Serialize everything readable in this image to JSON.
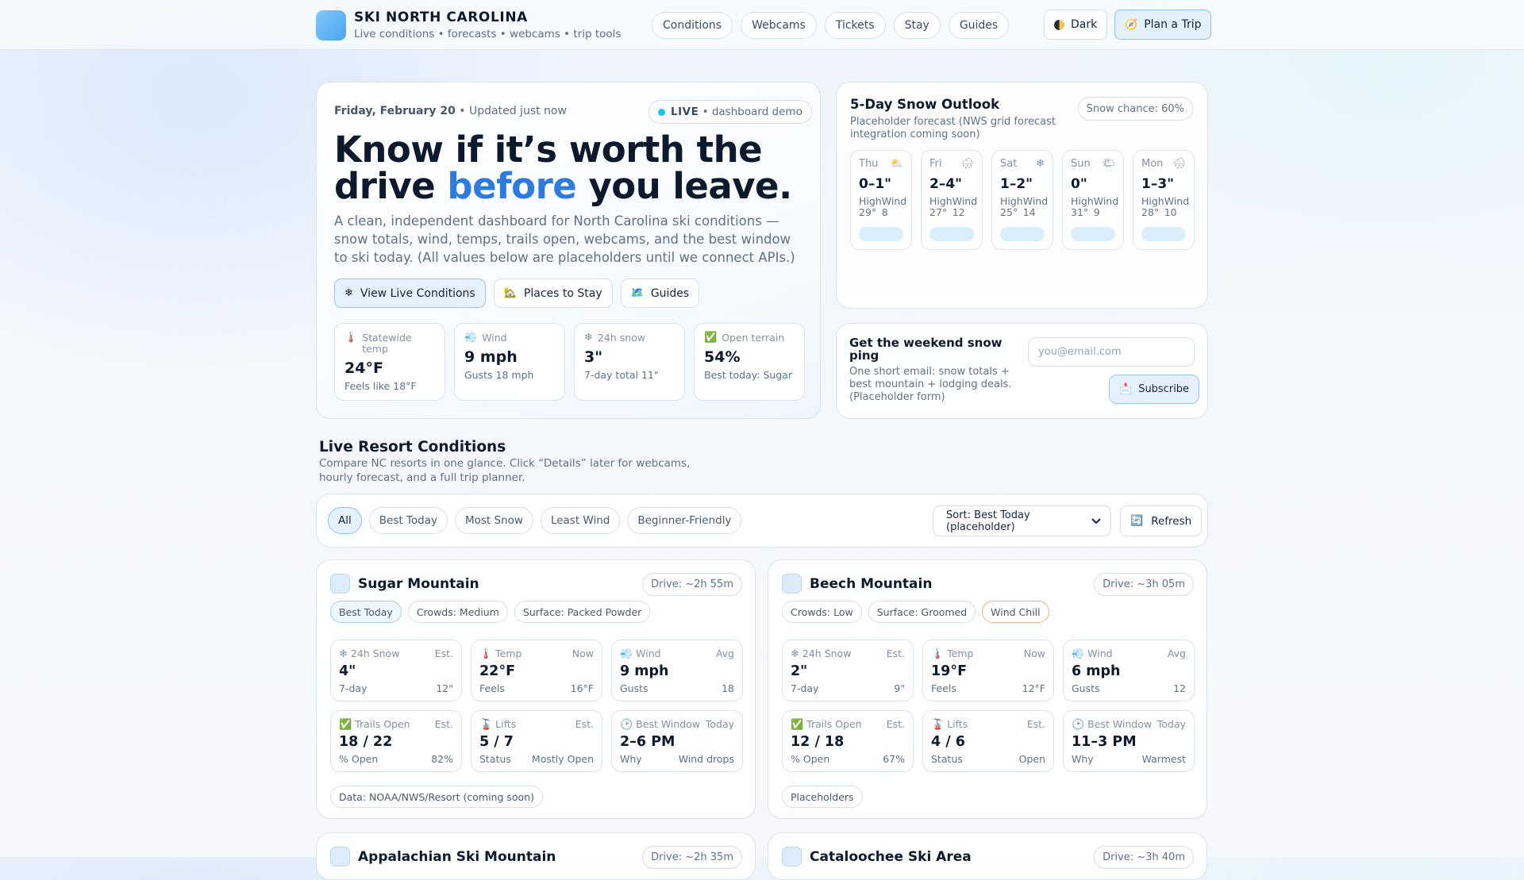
{
  "header": {
    "brand_name": "SKI NORTH CAROLINA",
    "brand_tagline": "Live conditions • forecasts • webcams • trip tools",
    "nav": [
      "Conditions",
      "Webcams",
      "Tickets",
      "Stay",
      "Guides"
    ],
    "dark_label": "Dark",
    "plan_label": "Plan a Trip"
  },
  "hero": {
    "date": "Friday, February 20",
    "updated": " • Updated just now",
    "live_label": "LIVE",
    "live_sub": " • dashboard demo",
    "title_a": "Know if it’s worth the drive ",
    "title_accent": "before",
    "title_b": " you leave.",
    "description": "A clean, independent dashboard for North Carolina ski conditions — snow totals, wind, temps, trails open, webcams, and the best window to ski today. (All values below are placeholders until we connect APIs.)",
    "cta": [
      "View Live Conditions",
      "Places to Stay",
      "Guides"
    ],
    "stats": [
      {
        "label": "Statewide temp",
        "value": "24°F",
        "sub": "Feels like 18°F",
        "icon": "thermometer-icon"
      },
      {
        "label": "Wind",
        "value": "9 mph",
        "sub": "Gusts 18 mph",
        "icon": "wind-icon"
      },
      {
        "label": "24h snow",
        "value": "3\"",
        "sub": "7-day total 11\"",
        "icon": "snowflake-icon"
      },
      {
        "label": "Open terrain",
        "value": "54%",
        "sub": "Best today: Sugar",
        "icon": "check-icon"
      }
    ]
  },
  "outlook": {
    "title": "5-Day Snow Outlook",
    "subtitle": "Placeholder forecast (NWS grid forecast integration coming soon)",
    "chance": "Snow chance: 60%",
    "days": [
      {
        "day": "Thu",
        "icon": "⛅",
        "snow": "0–1\"",
        "high_label": "High",
        "high": "29°",
        "wind_label": "Wind",
        "wind": "8"
      },
      {
        "day": "Fri",
        "icon": "🌨",
        "snow": "2–4\"",
        "high_label": "High",
        "high": "27°",
        "wind_label": "Wind",
        "wind": "12"
      },
      {
        "day": "Sat",
        "icon": "❄",
        "snow": "1–2\"",
        "high_label": "High",
        "high": "25°",
        "wind_label": "Wind",
        "wind": "14"
      },
      {
        "day": "Sun",
        "icon": "🌤",
        "snow": "0\"",
        "high_label": "High",
        "high": "31°",
        "wind_label": "Wind",
        "wind": "9"
      },
      {
        "day": "Mon",
        "icon": "🌨",
        "snow": "1–3\"",
        "high_label": "High",
        "high": "28°",
        "wind_label": "Wind",
        "wind": "10"
      }
    ]
  },
  "ping": {
    "title": "Get the weekend snow ping",
    "subtitle": "One short email: snow totals + best mountain + lodging deals. (Placeholder form)",
    "email_placeholder": "you@email.com",
    "subscribe_label": "Subscribe"
  },
  "section": {
    "title": "Live Resort Conditions",
    "subtitle": "Compare NC resorts in one glance. Click “Details” later for webcams, hourly forecast, and a full trip planner."
  },
  "filters": {
    "items": [
      "All",
      "Best Today",
      "Most Snow",
      "Least Wind",
      "Beginner-Friendly"
    ],
    "sort_label": "Sort: Best Today (placeholder)",
    "refresh_label": "Refresh"
  },
  "resorts": [
    {
      "name": "Sugar Mountain",
      "drive": "Drive: ~2h 55m",
      "tags": [
        "Best Today",
        "Crowds: Medium",
        "Surface: Packed Powder"
      ],
      "metrics": [
        {
          "label": "24h Snow",
          "tag": "Est.",
          "value": "4\"",
          "sub_l": "7-day",
          "sub_r": "12\""
        },
        {
          "label": "Temp",
          "tag": "Now",
          "value": "22°F",
          "sub_l": "Feels",
          "sub_r": "16°F"
        },
        {
          "label": "Wind",
          "tag": "Avg",
          "value": "9 mph",
          "sub_l": "Gusts",
          "sub_r": "18"
        },
        {
          "label": "Trails Open",
          "tag": "Est.",
          "value": "18 / 22",
          "sub_l": "% Open",
          "sub_r": "82%"
        },
        {
          "label": "Lifts",
          "tag": "Est.",
          "value": "5 / 7",
          "sub_l": "Status",
          "sub_r": "Mostly Open"
        },
        {
          "label": "Best Window",
          "tag": "Today",
          "value": "2–6 PM",
          "sub_l": "Why",
          "sub_r": "Wind drops"
        }
      ],
      "footer": "Data: NOAA/NWS/Resort (coming soon)"
    },
    {
      "name": "Beech Mountain",
      "drive": "Drive: ~3h 05m",
      "tags": [
        "Crowds: Low",
        "Surface: Groomed",
        "Wind Chill"
      ],
      "metrics": [
        {
          "label": "24h Snow",
          "tag": "Est.",
          "value": "2\"",
          "sub_l": "7-day",
          "sub_r": "9\""
        },
        {
          "label": "Temp",
          "tag": "Now",
          "value": "19°F",
          "sub_l": "Feels",
          "sub_r": "12°F"
        },
        {
          "label": "Wind",
          "tag": "Avg",
          "value": "6 mph",
          "sub_l": "Gusts",
          "sub_r": "12"
        },
        {
          "label": "Trails Open",
          "tag": "Est.",
          "value": "12 / 18",
          "sub_l": "% Open",
          "sub_r": "67%"
        },
        {
          "label": "Lifts",
          "tag": "Est.",
          "value": "4 / 6",
          "sub_l": "Status",
          "sub_r": "Open"
        },
        {
          "label": "Best Window",
          "tag": "Today",
          "value": "11–3 PM",
          "sub_l": "Why",
          "sub_r": "Warmest"
        }
      ],
      "footer": "Placeholders"
    },
    {
      "name": "Appalachian Ski Mountain",
      "drive": "Drive: ~2h 35m"
    },
    {
      "name": "Cataloochee Ski Area",
      "drive": "Drive: ~3h 40m"
    }
  ],
  "icons": {
    "metric_icons": [
      "snowflake-icon",
      "thermometer-icon",
      "wind-icon",
      "check-icon",
      "lift-icon",
      "clock-icon"
    ]
  }
}
